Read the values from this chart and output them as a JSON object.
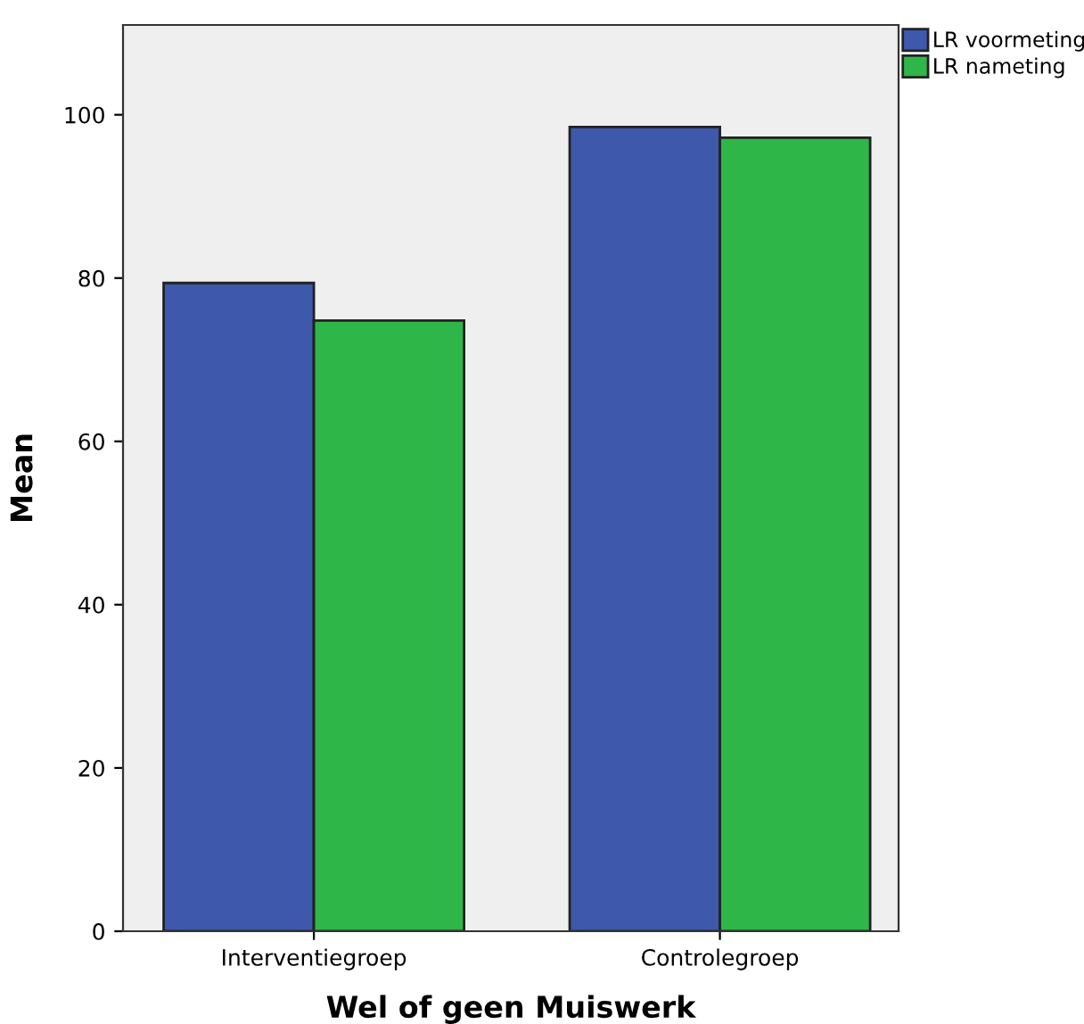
{
  "chart_data": {
    "type": "bar",
    "xlabel": "Wel of geen Muiswerk",
    "ylabel": "Mean",
    "categories": [
      "Interventiegroep",
      "Controlegroep"
    ],
    "series": [
      {
        "name": "LR voormeting",
        "color": "#3e58ac",
        "values": [
          79.4,
          98.5
        ]
      },
      {
        "name": "LR nameting",
        "color": "#2fb648",
        "values": [
          74.8,
          97.2
        ]
      }
    ],
    "ylim": [
      0,
      111
    ],
    "yticks": [
      0,
      20,
      40,
      60,
      80,
      100
    ],
    "grid": false,
    "legend": "top right"
  }
}
